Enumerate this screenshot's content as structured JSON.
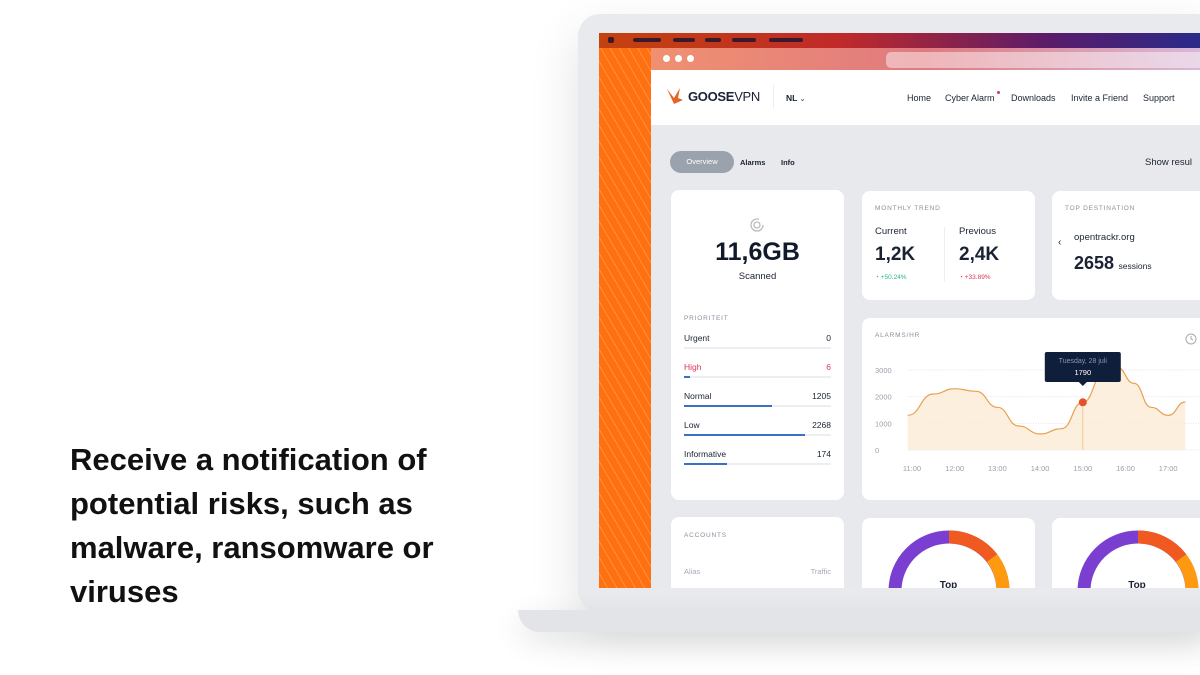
{
  "headline": "Receive a notification of potential risks, such as malware, ransomware or viruses",
  "app": {
    "brand": {
      "bold": "GOOSE",
      "light": "VPN",
      "accent": "#e8632a"
    },
    "language": "NL",
    "nav": [
      "Home",
      "Cyber Alarm",
      "Downloads",
      "Invite a Friend",
      "Support"
    ],
    "tabs": [
      {
        "label": "Overview",
        "active": true
      },
      {
        "label": "Alarms"
      },
      {
        "label": "Info"
      }
    ],
    "show_results": "Show resul",
    "scanned": {
      "value": "11,6GB",
      "label": "Scanned",
      "icon": "radar-icon"
    },
    "priority": {
      "title": "PRIORITEIT",
      "items": [
        {
          "label": "Urgent",
          "value": "0",
          "fraction": 0
        },
        {
          "label": "High",
          "value": "6",
          "fraction": 0.04,
          "color": "#d9365a"
        },
        {
          "label": "Normal",
          "value": "1205",
          "fraction": 0.6
        },
        {
          "label": "Low",
          "value": "2268",
          "fraction": 0.82
        },
        {
          "label": "Informative",
          "value": "174",
          "fraction": 0.29
        }
      ]
    },
    "monthly_trend": {
      "title": "MONTHLY TREND",
      "current": {
        "label": "Current",
        "value": "1,2K",
        "change": "+50.24%",
        "color": "#2bb58a"
      },
      "previous": {
        "label": "Previous",
        "value": "2,4K",
        "change": "+33.89%",
        "color": "#d9365a"
      }
    },
    "top_destination": {
      "title": "TOP DESTINATION",
      "domain": "opentrackr.org",
      "sessions": "2658",
      "sessions_label": "sessions"
    },
    "accounts": {
      "title": "ACCOUNTS",
      "col_alias": "Alias",
      "col_traffic": "Traffic"
    },
    "donuts": [
      {
        "label": "Top"
      },
      {
        "label": "Top"
      }
    ]
  },
  "chart_data": {
    "type": "area",
    "title": "ALARMS/HR",
    "x_ticks": [
      "11:00",
      "12:00",
      "13:00",
      "14:00",
      "15:00",
      "16:00",
      "17:00"
    ],
    "y_ticks": [
      0,
      1000,
      2000,
      3000
    ],
    "ylim": [
      0,
      3000
    ],
    "x": [
      10.9,
      11.5,
      12.0,
      12.5,
      13.0,
      13.5,
      14.0,
      14.5,
      15.0,
      15.5,
      15.8,
      16.2,
      16.6,
      17.0,
      17.4
    ],
    "y": [
      1300,
      2100,
      2300,
      2200,
      1600,
      900,
      600,
      800,
      1790,
      2900,
      3100,
      2500,
      1600,
      1300,
      1800
    ],
    "tooltip": {
      "date": "Tuesday, 28 juli",
      "value": "1790",
      "x": 15.0
    },
    "grid": true,
    "color": "#e8a050"
  }
}
